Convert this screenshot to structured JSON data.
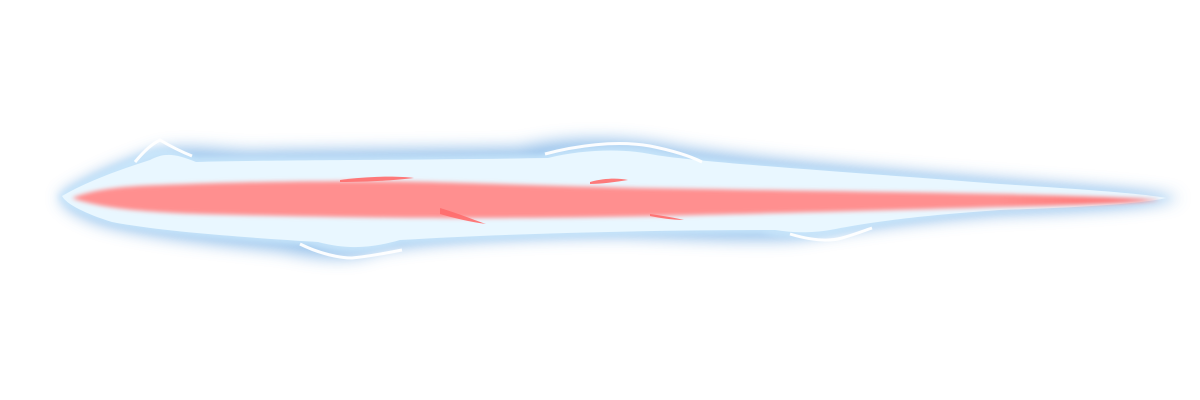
{
  "sprite": {
    "icon": "energy-beam-icon",
    "colors": {
      "background": "#ffffff",
      "outer_glow": "#7fb2e5",
      "mid_glow": "#c9e6fb",
      "shell": "#e9f7ff",
      "core": "#ff8f8f",
      "core_hot": "#ff6b6b",
      "highlight": "#ffffff"
    }
  }
}
